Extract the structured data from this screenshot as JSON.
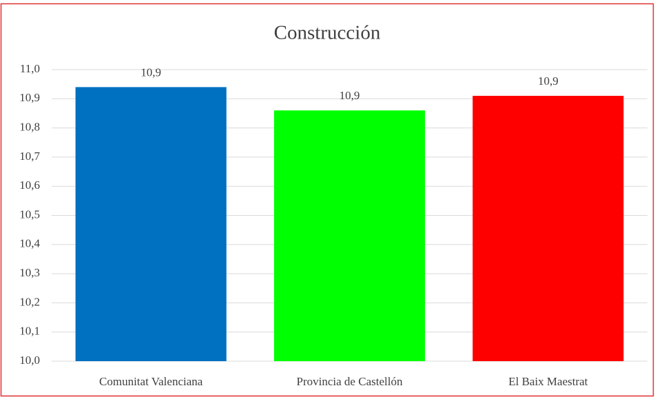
{
  "chart_data": {
    "type": "bar",
    "title": "Construcción",
    "categories": [
      "Comunitat Valenciana",
      "Provincia de Castellón",
      "El Baix Maestrat"
    ],
    "values": [
      10.94,
      10.86,
      10.91
    ],
    "value_labels": [
      "10,9",
      "10,9",
      "10,9"
    ],
    "colors": [
      "#0070c0",
      "#00ff00",
      "#ff0000"
    ],
    "ylim": [
      10.0,
      11.0
    ],
    "yticks": [
      {
        "value": 10.0,
        "label": "10,0"
      },
      {
        "value": 10.1,
        "label": "10,1"
      },
      {
        "value": 10.2,
        "label": "10,2"
      },
      {
        "value": 10.3,
        "label": "10,3"
      },
      {
        "value": 10.4,
        "label": "10,4"
      },
      {
        "value": 10.5,
        "label": "10,5"
      },
      {
        "value": 10.6,
        "label": "10,6"
      },
      {
        "value": 10.7,
        "label": "10,7"
      },
      {
        "value": 10.8,
        "label": "10,8"
      },
      {
        "value": 10.9,
        "label": "10,9"
      },
      {
        "value": 11.0,
        "label": "11,0"
      }
    ],
    "grid": true
  }
}
